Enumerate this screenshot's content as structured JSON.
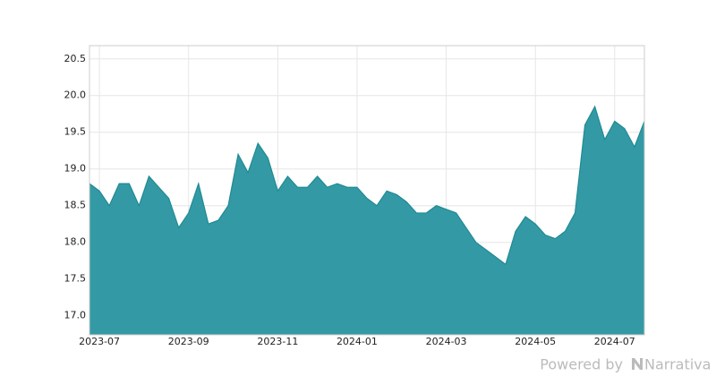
{
  "chart_data": {
    "type": "area",
    "categories": [
      null,
      "2023-07",
      null,
      null,
      null,
      null,
      null,
      null,
      null,
      null,
      "2023-09",
      null,
      null,
      null,
      null,
      null,
      null,
      null,
      null,
      "2023-11",
      null,
      null,
      null,
      null,
      null,
      null,
      null,
      "2024-01",
      null,
      null,
      null,
      null,
      null,
      null,
      null,
      null,
      "2024-03",
      null,
      null,
      null,
      null,
      null,
      null,
      null,
      null,
      "2024-05",
      null,
      null,
      null,
      null,
      null,
      null,
      null,
      "2024-07",
      null,
      null,
      null
    ],
    "values": [
      18.8,
      18.7,
      18.5,
      18.8,
      18.8,
      18.5,
      18.9,
      18.75,
      18.6,
      18.2,
      18.4,
      18.8,
      18.25,
      18.3,
      18.5,
      19.2,
      18.95,
      19.35,
      19.15,
      18.7,
      18.9,
      18.75,
      18.75,
      18.9,
      18.75,
      18.8,
      18.75,
      18.75,
      18.6,
      18.5,
      18.7,
      18.65,
      18.55,
      18.4,
      18.4,
      18.5,
      18.45,
      18.4,
      18.2,
      18.0,
      17.9,
      17.8,
      17.7,
      18.15,
      18.35,
      18.25,
      18.1,
      18.05,
      18.15,
      18.4,
      19.6,
      19.85,
      19.4,
      19.65,
      19.55,
      19.3,
      19.65
    ],
    "color": "#339aa5",
    "ylim": [
      16.74,
      20.68
    ],
    "yticks": [
      {
        "value": 17,
        "label": "17.0"
      },
      17.5,
      {
        "value": 18,
        "label": "18.0"
      },
      18.5,
      {
        "value": 19,
        "label": "19.0"
      },
      19.5,
      {
        "value": 20,
        "label": "20.0"
      },
      20.5
    ],
    "grid": true
  },
  "footer": {
    "powered": "Powered by",
    "brand": "Narrativa"
  }
}
